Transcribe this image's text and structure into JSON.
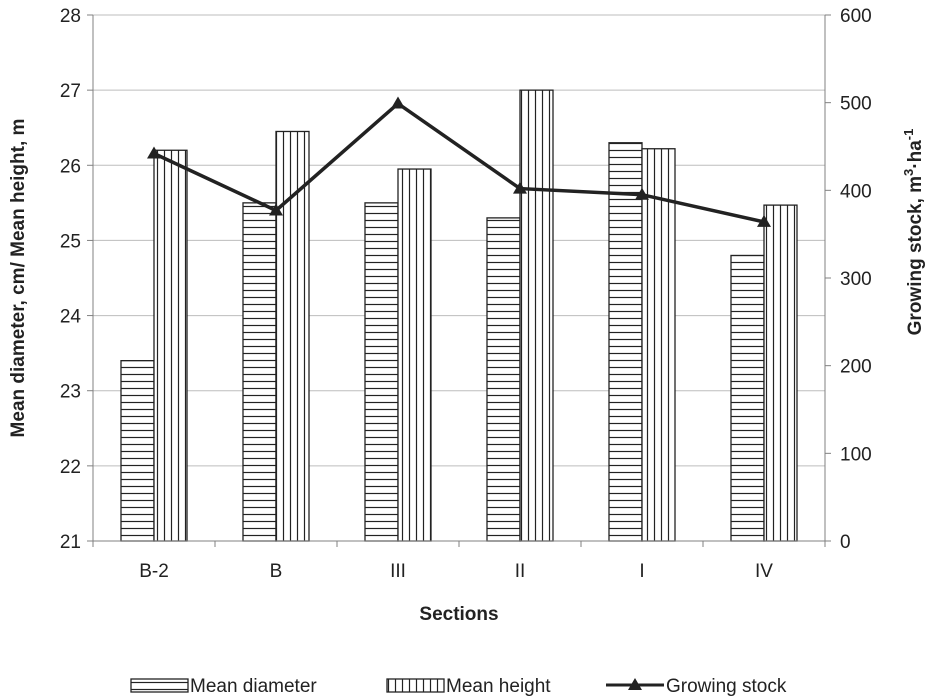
{
  "chart_data": {
    "type": "bar",
    "categories": [
      "B-2",
      "B",
      "III",
      "II",
      "I",
      "IV"
    ],
    "series": [
      {
        "name": "Mean diameter",
        "kind": "bar",
        "axis": "left",
        "pattern": "horizontal-lines",
        "values": [
          23.4,
          25.5,
          25.5,
          25.3,
          26.3,
          24.8
        ]
      },
      {
        "name": "Mean height",
        "kind": "bar",
        "axis": "left",
        "pattern": "vertical-lines",
        "values": [
          26.2,
          26.45,
          25.95,
          27.0,
          26.22,
          25.47
        ]
      },
      {
        "name": "Growing stock",
        "kind": "line",
        "axis": "right",
        "marker": "triangle",
        "values": [
          442,
          377,
          499,
          402,
          395,
          364
        ]
      }
    ],
    "xlabel": "Sections",
    "ylabel": "Mean diameter, cm/ Mean height, m",
    "y2label": {
      "main": "Growing stock, m",
      "sup1": "3",
      "mid": "·ha",
      "sup2": "-1"
    },
    "ylim": [
      21,
      28
    ],
    "yticks": [
      "21",
      "22",
      "23",
      "24",
      "25",
      "26",
      "27",
      "28"
    ],
    "y2lim": [
      0,
      600
    ],
    "y2ticks": [
      "0",
      "100",
      "200",
      "300",
      "400",
      "500",
      "600"
    ],
    "grid": true,
    "legend": "bottom",
    "colors": {
      "line": "#222222",
      "bar_fill": "#ffffff",
      "bar_stroke": "#222222",
      "grid": "#bdbdbd",
      "axis": "#808080"
    }
  }
}
